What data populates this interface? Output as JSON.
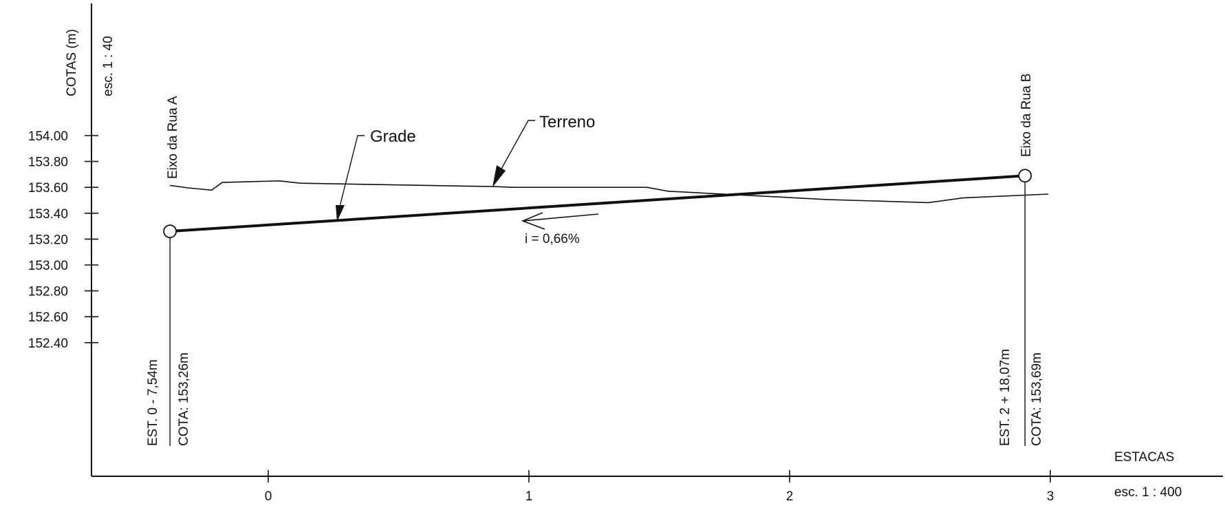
{
  "chart_data": {
    "type": "line",
    "title": "",
    "y_axis": {
      "label": "COTAS (m)",
      "scale": "esc. 1 : 40",
      "ticks": [
        "154.00",
        "153.80",
        "153.60",
        "153.40",
        "153.20",
        "153.00",
        "152.80",
        "152.60",
        "152.40"
      ],
      "tick_values": [
        154.0,
        153.8,
        153.6,
        153.4,
        153.2,
        153.0,
        152.8,
        152.6,
        152.4
      ]
    },
    "x_axis": {
      "label": "ESTACAS",
      "scale": "esc. 1 : 400",
      "ticks": [
        "0",
        "1",
        "2",
        "3"
      ],
      "tick_values": [
        0,
        1,
        2,
        3
      ]
    },
    "series": [
      {
        "name": "Terreno",
        "x": [
          -0.377,
          -0.307,
          -0.217,
          -0.177,
          0.043,
          0.123,
          0.863,
          0.943,
          1.453,
          1.533,
          2.143,
          2.533,
          2.663,
          2.993
        ],
        "y": [
          153.615,
          153.596,
          153.578,
          153.638,
          153.65,
          153.632,
          153.606,
          153.6,
          153.6,
          153.57,
          153.506,
          153.482,
          153.518,
          153.548
        ]
      },
      {
        "name": "Grade",
        "x": [
          -0.377,
          2.903
        ],
        "y": [
          153.26,
          153.69
        ]
      }
    ],
    "annotations": {
      "grade_label": "Grade",
      "terreno_label": "Terreno",
      "slope": "i = 0,66%",
      "start": {
        "eixo": "Eixo da Rua A",
        "estaca": "EST. 0 - 7,54m",
        "cota": "COTA: 153,26m",
        "x": -0.377,
        "y": 153.26
      },
      "end": {
        "eixo": "Eixo da Rua B",
        "estaca": "EST. 2 + 18,07m",
        "cota": "COTA: 153,69m",
        "x": 2.903,
        "y": 153.69
      }
    }
  }
}
